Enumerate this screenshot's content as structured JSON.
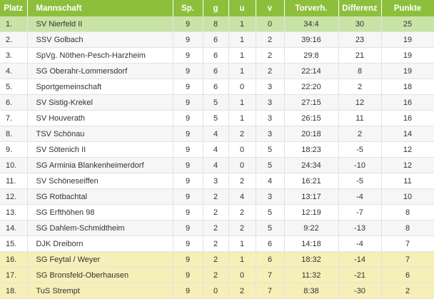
{
  "table": {
    "headers": {
      "place": "Platz",
      "team": "Mannschaft",
      "played": "Sp.",
      "won": "g",
      "drawn": "u",
      "lost": "v",
      "goals": "Torverh.",
      "difference": "Differenz",
      "points": "Punkte"
    },
    "rows": [
      {
        "place": "1.",
        "team": "SV Nierfeld II",
        "played": "9",
        "won": "8",
        "drawn": "1",
        "lost": "0",
        "goals": "34:4",
        "difference": "30",
        "points": "25",
        "zone": "promotion"
      },
      {
        "place": "2.",
        "team": "SSV Golbach",
        "played": "9",
        "won": "6",
        "drawn": "1",
        "lost": "2",
        "goals": "39:16",
        "difference": "23",
        "points": "19",
        "zone": "none"
      },
      {
        "place": "3.",
        "team": "SpVg. Nöthen-Pesch-Harzheim",
        "played": "9",
        "won": "6",
        "drawn": "1",
        "lost": "2",
        "goals": "29:8",
        "difference": "21",
        "points": "19",
        "zone": "none"
      },
      {
        "place": "4.",
        "team": "SG Oberahr-Lommersdorf",
        "played": "9",
        "won": "6",
        "drawn": "1",
        "lost": "2",
        "goals": "22:14",
        "difference": "8",
        "points": "19",
        "zone": "none"
      },
      {
        "place": "5.",
        "team": "Sportgemeinschaft",
        "played": "9",
        "won": "6",
        "drawn": "0",
        "lost": "3",
        "goals": "22:20",
        "difference": "2",
        "points": "18",
        "zone": "none"
      },
      {
        "place": "6.",
        "team": "SV Sistig-Krekel",
        "played": "9",
        "won": "5",
        "drawn": "1",
        "lost": "3",
        "goals": "27:15",
        "difference": "12",
        "points": "16",
        "zone": "none"
      },
      {
        "place": "7.",
        "team": "SV Houverath",
        "played": "9",
        "won": "5",
        "drawn": "1",
        "lost": "3",
        "goals": "26:15",
        "difference": "11",
        "points": "16",
        "zone": "none"
      },
      {
        "place": "8.",
        "team": "TSV Schönau",
        "played": "9",
        "won": "4",
        "drawn": "2",
        "lost": "3",
        "goals": "20:18",
        "difference": "2",
        "points": "14",
        "zone": "none"
      },
      {
        "place": "9.",
        "team": "SV Sötenich II",
        "played": "9",
        "won": "4",
        "drawn": "0",
        "lost": "5",
        "goals": "18:23",
        "difference": "-5",
        "points": "12",
        "zone": "none"
      },
      {
        "place": "10.",
        "team": "SG Arminia Blankenheimerdorf",
        "played": "9",
        "won": "4",
        "drawn": "0",
        "lost": "5",
        "goals": "24:34",
        "difference": "-10",
        "points": "12",
        "zone": "none"
      },
      {
        "place": "11.",
        "team": "SV Schöneseiffen",
        "played": "9",
        "won": "3",
        "drawn": "2",
        "lost": "4",
        "goals": "16:21",
        "difference": "-5",
        "points": "11",
        "zone": "none"
      },
      {
        "place": "12.",
        "team": "SG Rotbachtal",
        "played": "9",
        "won": "2",
        "drawn": "4",
        "lost": "3",
        "goals": "13:17",
        "difference": "-4",
        "points": "10",
        "zone": "none"
      },
      {
        "place": "13.",
        "team": "SG Erfthöhen 98",
        "played": "9",
        "won": "2",
        "drawn": "2",
        "lost": "5",
        "goals": "12:19",
        "difference": "-7",
        "points": "8",
        "zone": "none"
      },
      {
        "place": "14.",
        "team": "SG Dahlem-Schmidtheim",
        "played": "9",
        "won": "2",
        "drawn": "2",
        "lost": "5",
        "goals": "9:22",
        "difference": "-13",
        "points": "8",
        "zone": "none"
      },
      {
        "place": "15.",
        "team": "DJK Dreiborn",
        "played": "9",
        "won": "2",
        "drawn": "1",
        "lost": "6",
        "goals": "14:18",
        "difference": "-4",
        "points": "7",
        "zone": "none"
      },
      {
        "place": "16.",
        "team": "SG Feytal / Weyer",
        "played": "9",
        "won": "2",
        "drawn": "1",
        "lost": "6",
        "goals": "18:32",
        "difference": "-14",
        "points": "7",
        "zone": "relegation"
      },
      {
        "place": "17.",
        "team": "SG Bronsfeld-Oberhausen",
        "played": "9",
        "won": "2",
        "drawn": "0",
        "lost": "7",
        "goals": "11:32",
        "difference": "-21",
        "points": "6",
        "zone": "relegation"
      },
      {
        "place": "18.",
        "team": "TuS Strempt",
        "played": "9",
        "won": "0",
        "drawn": "2",
        "lost": "7",
        "goals": "8:38",
        "difference": "-30",
        "points": "2",
        "zone": "relegation"
      }
    ]
  },
  "colors": {
    "header_bg": "#8dbf3c",
    "promotion_bg": "#c9e3a6",
    "relegation_bg": "#f7efb8"
  }
}
